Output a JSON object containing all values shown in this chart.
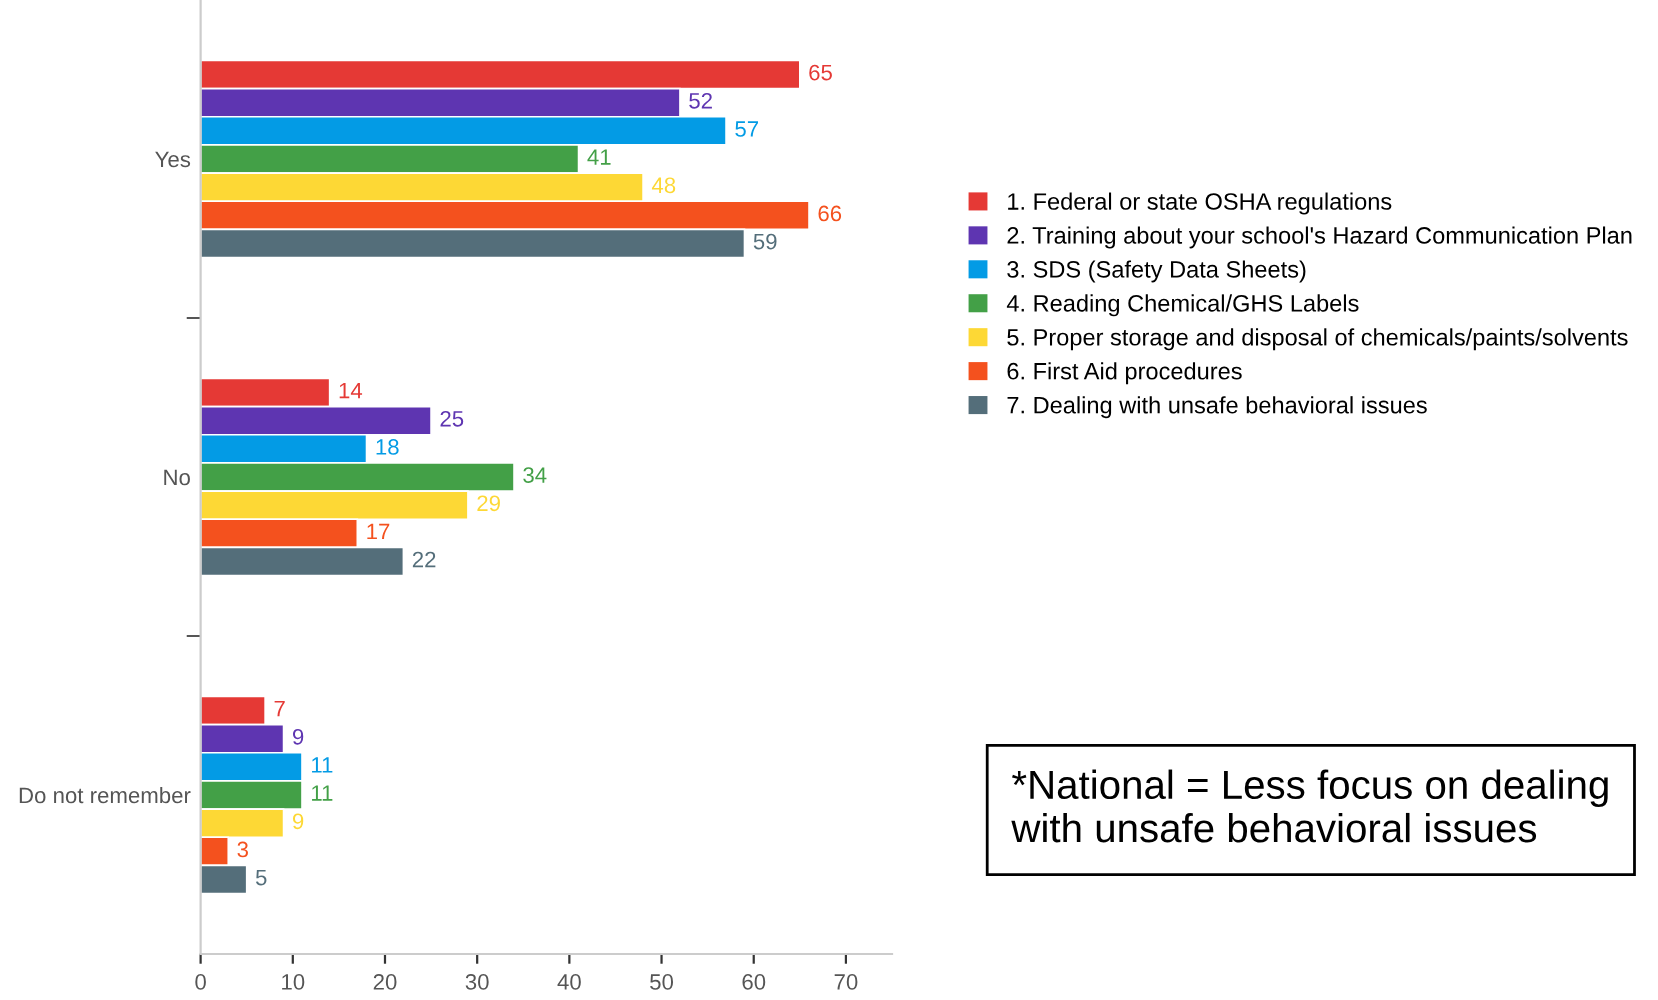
{
  "chart_data": {
    "type": "bar",
    "orientation": "horizontal",
    "categories": [
      "Yes",
      "No",
      "Do not remember"
    ],
    "series": [
      {
        "name": "1. Federal or state OSHA regulations",
        "color": "#e53935",
        "values": [
          65,
          14,
          7
        ]
      },
      {
        "name": "2. Training about your school's Hazard Communication Plan",
        "color": "#5e35b1",
        "values": [
          52,
          25,
          9
        ]
      },
      {
        "name": "3. SDS (Safety Data Sheets)",
        "color": "#039be5",
        "values": [
          57,
          18,
          11
        ]
      },
      {
        "name": "4. Reading Chemical/GHS Labels",
        "color": "#43a047",
        "values": [
          41,
          34,
          11
        ]
      },
      {
        "name": "5. Proper storage and disposal of chemicals/paints/solvents",
        "color": "#fdd835",
        "values": [
          48,
          29,
          9
        ]
      },
      {
        "name": "6. First Aid procedures",
        "color": "#f4511e",
        "values": [
          66,
          17,
          3
        ]
      },
      {
        "name": "7. Dealing with unsafe behavioral issues",
        "color": "#546e7a",
        "values": [
          59,
          22,
          5
        ]
      }
    ],
    "xlim": [
      0,
      75
    ],
    "xticks": [
      0,
      10,
      20,
      30,
      40,
      50,
      60,
      70
    ],
    "data_labels": true,
    "legend": "right",
    "grid": false,
    "annotations": [
      "*National = Less focus on dealing with unsafe behavioral issues"
    ]
  }
}
